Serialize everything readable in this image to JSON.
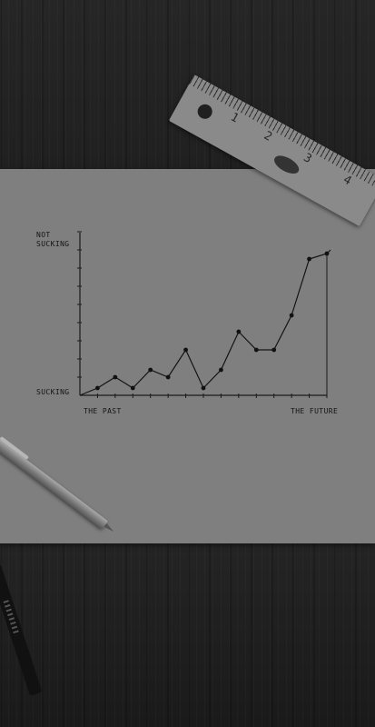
{
  "scene": {
    "objects": [
      "paper-sheet",
      "metal-ruler",
      "ballpoint-pen",
      "marker-pen"
    ]
  },
  "ruler": {
    "numbers": [
      "1",
      "2",
      "3",
      "4"
    ]
  },
  "chart_data": {
    "type": "line",
    "title": "",
    "xlabel": "",
    "ylabel": "",
    "x_tick_labels": [
      "THE PAST",
      "THE FUTURE"
    ],
    "y_tick_labels": [
      "SUCKING",
      "NOT SUCKING"
    ],
    "grid": false,
    "legend": "none",
    "x": [
      1,
      2,
      3,
      4,
      5,
      6,
      7,
      8,
      9,
      10,
      11,
      12,
      13,
      14
    ],
    "values": [
      0.4,
      1.0,
      0.4,
      1.4,
      1.0,
      2.5,
      0.4,
      1.4,
      3.5,
      2.5,
      2.5,
      4.4,
      7.5,
      7.8
    ],
    "ylim": [
      0,
      9
    ],
    "xlim": [
      0,
      14
    ]
  }
}
